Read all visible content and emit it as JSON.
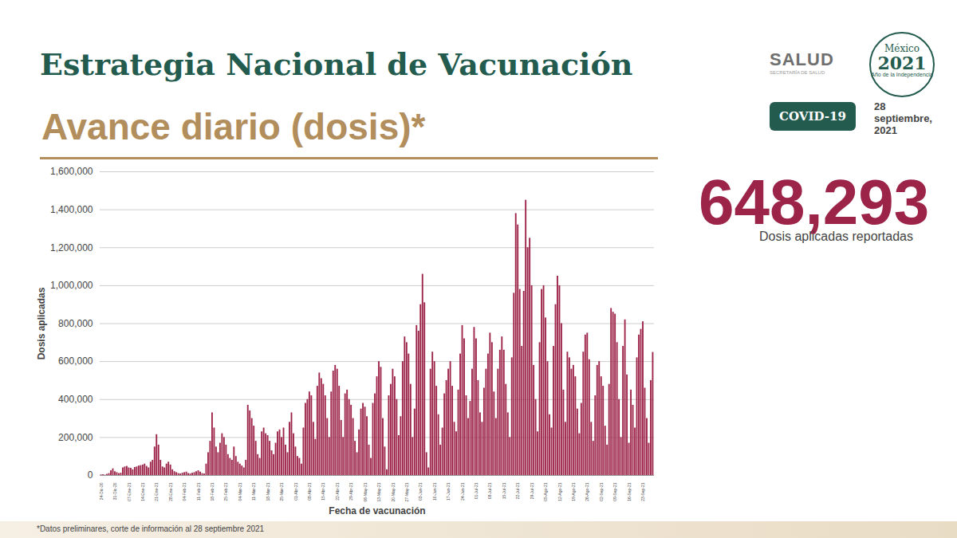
{
  "chart_data": {
    "type": "bar",
    "title": "Estrategia Nacional de Vacunación",
    "subtitle": "Avance diario (dosis)*",
    "x_label": "Fecha de vacunación",
    "y_label": "Dosis aplicadas",
    "color": "#9d2449",
    "grid": true,
    "ylim": [
      0,
      1600000
    ],
    "yticks": [
      {
        "value": 0,
        "label": "0"
      },
      {
        "value": 200000,
        "label": "200,000"
      },
      {
        "value": 400000,
        "label": "400,000"
      },
      {
        "value": 600000,
        "label": "600,000"
      },
      {
        "value": 800000,
        "label": "800,000"
      },
      {
        "value": 1000000,
        "label": "1,000,000"
      },
      {
        "value": 1200000,
        "label": "1,200,000"
      },
      {
        "value": 1400000,
        "label": "1,400,000"
      },
      {
        "value": 1600000,
        "label": "1,600,000"
      }
    ],
    "categories": [
      "24-Dic-20",
      null,
      null,
      null,
      null,
      null,
      null,
      "31-Dic-20",
      null,
      null,
      null,
      null,
      null,
      null,
      "07-Ene-21",
      null,
      null,
      null,
      null,
      null,
      null,
      "14-Ene-21",
      null,
      null,
      null,
      null,
      null,
      null,
      "21-Ene-21",
      null,
      null,
      null,
      null,
      null,
      null,
      "28-Ene-21",
      null,
      null,
      null,
      null,
      null,
      null,
      "04-Feb-21",
      null,
      null,
      null,
      null,
      null,
      null,
      "11-Feb-21",
      null,
      null,
      null,
      null,
      null,
      null,
      "18-Feb-21",
      null,
      null,
      null,
      null,
      null,
      null,
      "25-Feb-21",
      null,
      null,
      null,
      null,
      null,
      null,
      "04-Mar-21",
      null,
      null,
      null,
      null,
      null,
      null,
      "11-Mar-21",
      null,
      null,
      null,
      null,
      null,
      null,
      "18-Mar-21",
      null,
      null,
      null,
      null,
      null,
      null,
      "25-Mar-21",
      null,
      null,
      null,
      null,
      null,
      null,
      "01-Abr-21",
      null,
      null,
      null,
      null,
      null,
      null,
      "08-Abr-21",
      null,
      null,
      null,
      null,
      null,
      null,
      "15-Abr-21",
      null,
      null,
      null,
      null,
      null,
      null,
      "22-Abr-21",
      null,
      null,
      null,
      null,
      null,
      null,
      "29-Abr-21",
      null,
      null,
      null,
      null,
      null,
      null,
      "06-May-21",
      null,
      null,
      null,
      null,
      null,
      null,
      "13-May-21",
      null,
      null,
      null,
      null,
      null,
      null,
      "20-May-21",
      null,
      null,
      null,
      null,
      null,
      null,
      "27-May-21",
      null,
      null,
      null,
      null,
      null,
      null,
      "03-Jun-21",
      null,
      null,
      null,
      null,
      null,
      null,
      "10-Jun-21",
      null,
      null,
      null,
      null,
      null,
      null,
      "17-Jun-21",
      null,
      null,
      null,
      null,
      null,
      null,
      "24-Jun-21",
      null,
      null,
      null,
      null,
      null,
      null,
      "01-Jul-21",
      null,
      null,
      null,
      null,
      null,
      null,
      "08-Jul-21",
      null,
      null,
      null,
      null,
      null,
      null,
      "15-Jul-21",
      null,
      null,
      null,
      null,
      null,
      null,
      "22-Jul-21",
      null,
      null,
      null,
      null,
      null,
      null,
      "29-Jul-21",
      null,
      null,
      null,
      null,
      null,
      null,
      "05-Ago-21",
      null,
      null,
      null,
      null,
      null,
      null,
      "12-Ago-21",
      null,
      null,
      null,
      null,
      null,
      null,
      "19-Ago-21",
      null,
      null,
      null,
      null,
      null,
      null,
      "26-Ago-21",
      null,
      null,
      null,
      null,
      null,
      null,
      "02-Sep-21",
      null,
      null,
      null,
      null,
      null,
      null,
      "09-Sep-21",
      null,
      null,
      null,
      null,
      null,
      null,
      "16-Sep-21",
      null,
      null,
      null,
      null,
      null,
      null,
      "23-Sep-21",
      null,
      null,
      null,
      null,
      null
    ],
    "values": [
      3000,
      4000,
      2000,
      6000,
      10000,
      25000,
      35000,
      20000,
      15000,
      10000,
      12000,
      40000,
      45000,
      48000,
      40000,
      38000,
      30000,
      42000,
      45000,
      50000,
      52000,
      55000,
      60000,
      48000,
      40000,
      70000,
      80000,
      150000,
      215000,
      160000,
      80000,
      45000,
      40000,
      60000,
      70000,
      55000,
      30000,
      20000,
      15000,
      10000,
      8000,
      12000,
      15000,
      18000,
      10000,
      8000,
      12000,
      15000,
      20000,
      25000,
      18000,
      10000,
      8000,
      60000,
      120000,
      180000,
      330000,
      250000,
      150000,
      120000,
      170000,
      220000,
      200000,
      160000,
      110000,
      90000,
      80000,
      150000,
      100000,
      70000,
      60000,
      50000,
      40000,
      80000,
      370000,
      340000,
      300000,
      260000,
      180000,
      110000,
      90000,
      230000,
      250000,
      220000,
      210000,
      180000,
      130000,
      110000,
      170000,
      230000,
      240000,
      200000,
      250000,
      160000,
      120000,
      280000,
      330000,
      220000,
      150000,
      100000,
      90000,
      60000,
      250000,
      380000,
      400000,
      440000,
      420000,
      280000,
      190000,
      470000,
      540000,
      510000,
      480000,
      420000,
      300000,
      200000,
      440000,
      550000,
      580000,
      560000,
      470000,
      290000,
      200000,
      430000,
      450000,
      400000,
      370000,
      300000,
      180000,
      120000,
      240000,
      350000,
      380000,
      360000,
      310000,
      160000,
      90000,
      380000,
      430000,
      520000,
      600000,
      570000,
      300000,
      150000,
      30000,
      420000,
      480000,
      560000,
      520000,
      400000,
      210000,
      310000,
      600000,
      730000,
      700000,
      640000,
      480000,
      200000,
      350000,
      790000,
      760000,
      900000,
      1060000,
      910000,
      120000,
      40000,
      560000,
      650000,
      600000,
      470000,
      320000,
      160000,
      250000,
      430000,
      500000,
      560000,
      600000,
      470000,
      280000,
      230000,
      450000,
      640000,
      790000,
      720000,
      420000,
      300000,
      390000,
      560000,
      780000,
      720000,
      500000,
      330000,
      280000,
      460000,
      560000,
      640000,
      750000,
      700000,
      440000,
      300000,
      560000,
      660000,
      730000,
      660000,
      480000,
      330000,
      200000,
      620000,
      960000,
      1380000,
      1320000,
      980000,
      680000,
      970000,
      1450000,
      1200000,
      1250000,
      1000000,
      580000,
      400000,
      230000,
      700000,
      980000,
      1000000,
      830000,
      600000,
      320000,
      250000,
      680000,
      900000,
      1050000,
      1000000,
      800000,
      450000,
      280000,
      650000,
      620000,
      560000,
      580000,
      520000,
      350000,
      220000,
      380000,
      650000,
      740000,
      750000,
      610000,
      280000,
      180000,
      420000,
      580000,
      600000,
      520000,
      470000,
      260000,
      160000,
      480000,
      880000,
      860000,
      850000,
      700000,
      400000,
      200000,
      680000,
      820000,
      530000,
      170000,
      450000,
      370000,
      250000,
      620000,
      740000,
      770000,
      810000,
      460000,
      300000,
      170000,
      500000,
      648293
    ]
  },
  "page": {
    "logo": "SALUD",
    "logo_sub": "SECRETARÍA DE SALUD",
    "emblem_top": "México",
    "emblem_year": "2021",
    "emblem_text": "Año de la Independencia",
    "badge": "COVID-19",
    "date": "28 septiembre, 2021",
    "highlight": 648293,
    "highlight_label": "Dosis aplicadas reportadas",
    "footnote": "*Datos preliminares, corte de información al 28 septiembre  2021"
  }
}
